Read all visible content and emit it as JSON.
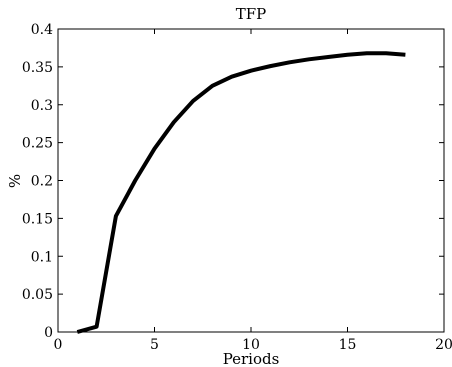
{
  "chart_data": {
    "type": "line",
    "title": "TFP",
    "xlabel": "Periods",
    "ylabel": "%",
    "xlim": [
      0,
      20
    ],
    "ylim": [
      0,
      0.4
    ],
    "xticks": [
      0,
      5,
      10,
      15,
      20
    ],
    "xtick_labels": [
      "0",
      "5",
      "10",
      "15",
      "20"
    ],
    "yticks": [
      0,
      0.05,
      0.1,
      0.15,
      0.2,
      0.25,
      0.3,
      0.35,
      0.4
    ],
    "ytick_labels": [
      "0",
      "0.05",
      "0.1",
      "0.15",
      "0.2",
      "0.25",
      "0.3",
      "0.35",
      "0.4"
    ],
    "grid": false,
    "series": [
      {
        "color": "#000000",
        "x": [
          1,
          2,
          3,
          4,
          5,
          6,
          7,
          8,
          9,
          10,
          11,
          12,
          13,
          14,
          15,
          16,
          17,
          18
        ],
        "y": [
          0.0,
          0.007,
          0.153,
          0.2,
          0.242,
          0.277,
          0.305,
          0.325,
          0.337,
          0.345,
          0.351,
          0.356,
          0.36,
          0.363,
          0.366,
          0.368,
          0.368,
          0.366
        ]
      }
    ]
  }
}
